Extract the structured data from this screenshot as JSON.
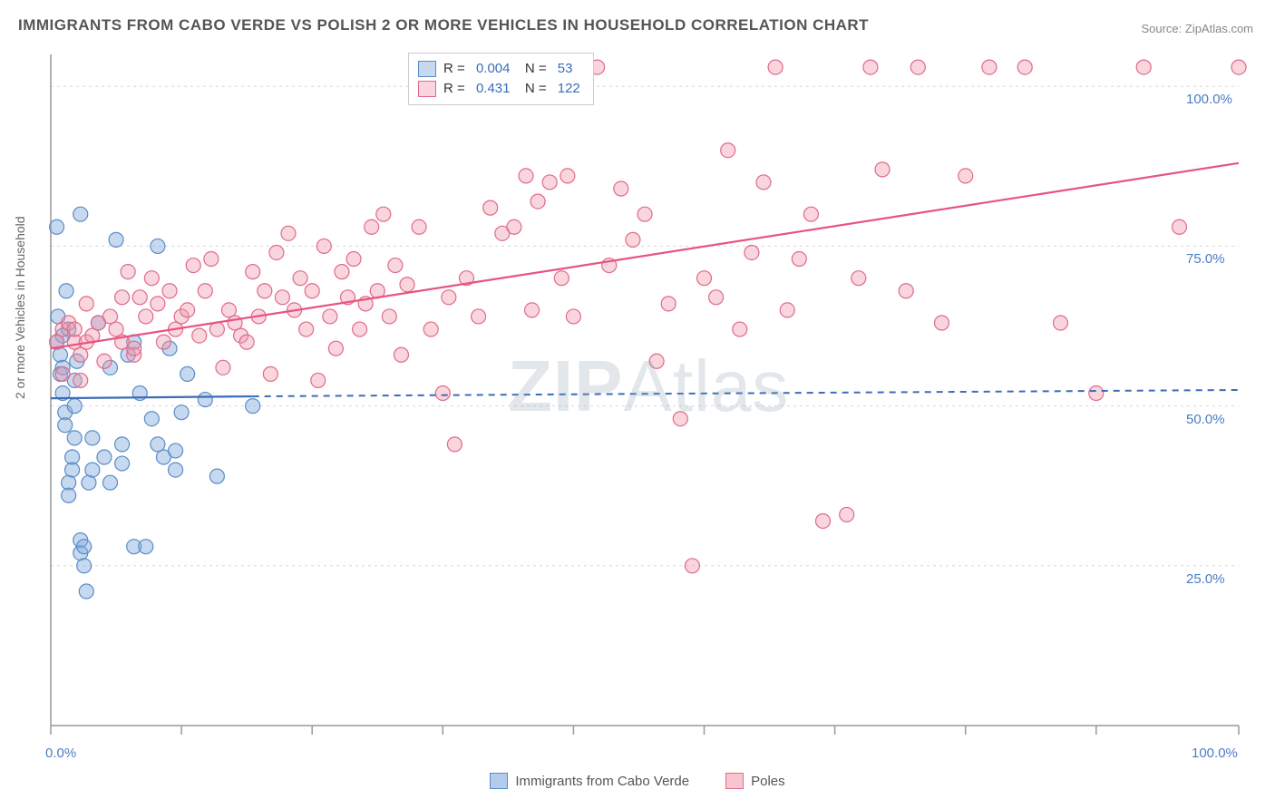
{
  "title": "IMMIGRANTS FROM CABO VERDE VS POLISH 2 OR MORE VEHICLES IN HOUSEHOLD CORRELATION CHART",
  "source": "Source: ZipAtlas.com",
  "ylabel": "2 or more Vehicles in Household",
  "watermark_a": "ZIP",
  "watermark_b": "Atlas",
  "chart": {
    "type": "scatter",
    "xlim": [
      0,
      100
    ],
    "ylim": [
      0,
      105
    ],
    "background_color": "#ffffff",
    "grid_color": "#d8d8d8",
    "axis_color": "#999999",
    "ytick_labels": [
      "25.0%",
      "50.0%",
      "75.0%",
      "100.0%"
    ],
    "ytick_positions": [
      25,
      50,
      75,
      100
    ],
    "xtick_positions": [
      0,
      11,
      22,
      33,
      44,
      55,
      66,
      77,
      88,
      100
    ],
    "xtick_labels_shown": {
      "0": "0.0%",
      "100": "100.0%"
    },
    "marker_radius": 8,
    "series": [
      {
        "key": "cabo_verde",
        "label": "Immigrants from Cabo Verde",
        "color_fill": "rgba(130,170,220,0.45)",
        "color_stroke": "#5a8cc8",
        "R": "0.004",
        "N": "53",
        "trend_solid": {
          "x1": 0,
          "y1": 51.2,
          "x2": 17,
          "y2": 51.5
        },
        "trend_dash": {
          "x1": 17,
          "y1": 51.5,
          "x2": 100,
          "y2": 52.5
        },
        "trend_color": "#3b6db8",
        "points": [
          [
            0.5,
            78
          ],
          [
            0.5,
            60
          ],
          [
            0.6,
            64
          ],
          [
            0.8,
            55
          ],
          [
            0.8,
            58
          ],
          [
            1,
            61
          ],
          [
            1,
            56
          ],
          [
            1,
            52
          ],
          [
            1.2,
            49
          ],
          [
            1.2,
            47
          ],
          [
            1.3,
            68
          ],
          [
            1.5,
            62
          ],
          [
            1.5,
            38
          ],
          [
            1.5,
            36
          ],
          [
            1.8,
            42
          ],
          [
            1.8,
            40
          ],
          [
            2,
            50
          ],
          [
            2,
            54
          ],
          [
            2,
            45
          ],
          [
            2.2,
            57
          ],
          [
            2.5,
            80
          ],
          [
            2.5,
            29
          ],
          [
            2.5,
            27
          ],
          [
            2.8,
            25
          ],
          [
            2.8,
            28
          ],
          [
            3,
            21
          ],
          [
            3.2,
            38
          ],
          [
            3.5,
            45
          ],
          [
            3.5,
            40
          ],
          [
            4,
            63
          ],
          [
            4.5,
            42
          ],
          [
            5,
            38
          ],
          [
            5,
            56
          ],
          [
            5.5,
            76
          ],
          [
            6,
            44
          ],
          [
            6,
            41
          ],
          [
            6.5,
            58
          ],
          [
            7,
            28
          ],
          [
            7,
            60
          ],
          [
            7.5,
            52
          ],
          [
            8,
            28
          ],
          [
            8.5,
            48
          ],
          [
            9,
            44
          ],
          [
            9,
            75
          ],
          [
            9.5,
            42
          ],
          [
            10,
            59
          ],
          [
            10.5,
            40
          ],
          [
            10.5,
            43
          ],
          [
            11,
            49
          ],
          [
            11.5,
            55
          ],
          [
            13,
            51
          ],
          [
            14,
            39
          ],
          [
            17,
            50
          ]
        ]
      },
      {
        "key": "poles",
        "label": "Poles",
        "color_fill": "rgba(240,150,170,0.40)",
        "color_stroke": "#e06a8a",
        "R": "0.431",
        "N": "122",
        "trend_solid": {
          "x1": 0,
          "y1": 59,
          "x2": 100,
          "y2": 88
        },
        "trend_dash": null,
        "trend_color": "#e75480",
        "points": [
          [
            0.5,
            60
          ],
          [
            1,
            62
          ],
          [
            1,
            55
          ],
          [
            1.5,
            63
          ],
          [
            2,
            60
          ],
          [
            2,
            62
          ],
          [
            2.5,
            58
          ],
          [
            2.5,
            54
          ],
          [
            3,
            60
          ],
          [
            3,
            66
          ],
          [
            3.5,
            61
          ],
          [
            4,
            63
          ],
          [
            4.5,
            57
          ],
          [
            5,
            64
          ],
          [
            5.5,
            62
          ],
          [
            6,
            60
          ],
          [
            6,
            67
          ],
          [
            6.5,
            71
          ],
          [
            7,
            58
          ],
          [
            7,
            59
          ],
          [
            7.5,
            67
          ],
          [
            8,
            64
          ],
          [
            8.5,
            70
          ],
          [
            9,
            66
          ],
          [
            9.5,
            60
          ],
          [
            10,
            68
          ],
          [
            10.5,
            62
          ],
          [
            11,
            64
          ],
          [
            11.5,
            65
          ],
          [
            12,
            72
          ],
          [
            12.5,
            61
          ],
          [
            13,
            68
          ],
          [
            13.5,
            73
          ],
          [
            14,
            62
          ],
          [
            14.5,
            56
          ],
          [
            15,
            65
          ],
          [
            15.5,
            63
          ],
          [
            16,
            61
          ],
          [
            16.5,
            60
          ],
          [
            17,
            71
          ],
          [
            17.5,
            64
          ],
          [
            18,
            68
          ],
          [
            18.5,
            55
          ],
          [
            19,
            74
          ],
          [
            19.5,
            67
          ],
          [
            20,
            77
          ],
          [
            20.5,
            65
          ],
          [
            21,
            70
          ],
          [
            21.5,
            62
          ],
          [
            22,
            68
          ],
          [
            22.5,
            54
          ],
          [
            23,
            75
          ],
          [
            23.5,
            64
          ],
          [
            24,
            59
          ],
          [
            24.5,
            71
          ],
          [
            25,
            67
          ],
          [
            25.5,
            73
          ],
          [
            26,
            62
          ],
          [
            26.5,
            66
          ],
          [
            27,
            78
          ],
          [
            27.5,
            68
          ],
          [
            28,
            80
          ],
          [
            28.5,
            64
          ],
          [
            29,
            72
          ],
          [
            29.5,
            58
          ],
          [
            30,
            69
          ],
          [
            31,
            78
          ],
          [
            32,
            62
          ],
          [
            33,
            52
          ],
          [
            33.5,
            67
          ],
          [
            34,
            44
          ],
          [
            35,
            70
          ],
          [
            36,
            64
          ],
          [
            37,
            81
          ],
          [
            38,
            77
          ],
          [
            39,
            78
          ],
          [
            40,
            86
          ],
          [
            40.5,
            65
          ],
          [
            41,
            82
          ],
          [
            42,
            85
          ],
          [
            43,
            70
          ],
          [
            43.5,
            86
          ],
          [
            44,
            64
          ],
          [
            45,
            103
          ],
          [
            46,
            103
          ],
          [
            47,
            72
          ],
          [
            48,
            84
          ],
          [
            49,
            76
          ],
          [
            50,
            80
          ],
          [
            51,
            57
          ],
          [
            52,
            66
          ],
          [
            53,
            48
          ],
          [
            54,
            25
          ],
          [
            55,
            70
          ],
          [
            56,
            67
          ],
          [
            57,
            90
          ],
          [
            58,
            62
          ],
          [
            59,
            74
          ],
          [
            60,
            85
          ],
          [
            61,
            103
          ],
          [
            62,
            65
          ],
          [
            63,
            73
          ],
          [
            64,
            80
          ],
          [
            65,
            32
          ],
          [
            67,
            33
          ],
          [
            68,
            70
          ],
          [
            69,
            103
          ],
          [
            70,
            87
          ],
          [
            72,
            68
          ],
          [
            73,
            103
          ],
          [
            75,
            63
          ],
          [
            77,
            86
          ],
          [
            79,
            103
          ],
          [
            82,
            103
          ],
          [
            85,
            63
          ],
          [
            88,
            52
          ],
          [
            92,
            103
          ],
          [
            95,
            78
          ],
          [
            100,
            103
          ]
        ]
      }
    ]
  },
  "bottom_legend": [
    {
      "label": "Immigrants from Cabo Verde",
      "fill": "rgba(130,170,220,0.6)",
      "stroke": "#5a8cc8"
    },
    {
      "label": "Poles",
      "fill": "rgba(240,150,170,0.55)",
      "stroke": "#e06a8a"
    }
  ]
}
